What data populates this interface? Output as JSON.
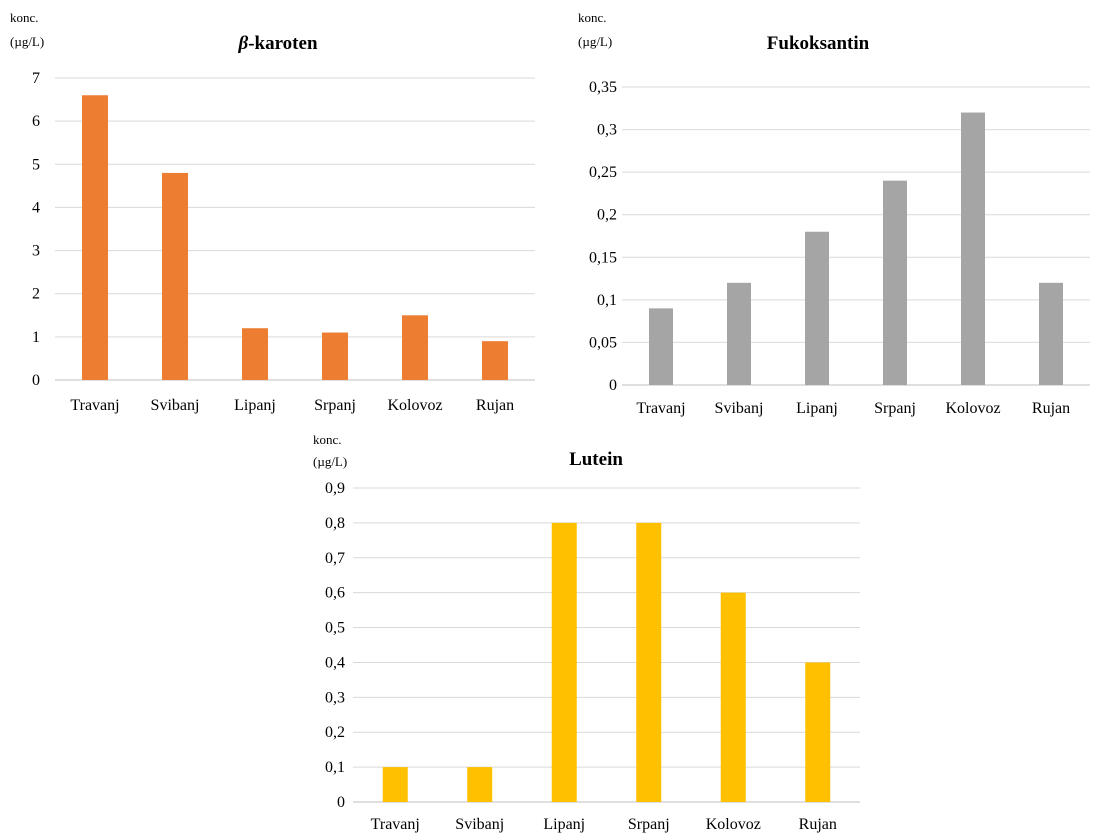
{
  "chart_data": [
    {
      "type": "bar",
      "title_prefix": "β",
      "title_rest": "-karoten",
      "ylabel_line1": "konc.",
      "ylabel_line2": "(µg/L)",
      "categories": [
        "Travanj",
        "Svibanj",
        "Lipanj",
        "Srpanj",
        "Kolovoz",
        "Rujan"
      ],
      "values": [
        6.6,
        4.8,
        1.2,
        1.1,
        1.5,
        0.9
      ],
      "ylim": [
        0,
        7
      ],
      "yticks": [
        "0",
        "1",
        "2",
        "3",
        "4",
        "5",
        "6",
        "7"
      ],
      "color": "#ed7d31",
      "grid": true
    },
    {
      "type": "bar",
      "title": "Fukoksantin",
      "ylabel_line1": "konc.",
      "ylabel_line2": "(µg/L)",
      "categories": [
        "Travanj",
        "Svibanj",
        "Lipanj",
        "Srpanj",
        "Kolovoz",
        "Rujan"
      ],
      "values": [
        0.09,
        0.12,
        0.18,
        0.24,
        0.32,
        0.12
      ],
      "ylim": [
        0,
        0.35
      ],
      "yticks": [
        "0",
        "0,05",
        "0,1",
        "0,15",
        "0,2",
        "0,25",
        "0,3",
        "0,35"
      ],
      "color": "#a5a5a5",
      "grid": true
    },
    {
      "type": "bar",
      "title": "Lutein",
      "ylabel_line1": "konc.",
      "ylabel_line2": "(µg/L)",
      "categories": [
        "Travanj",
        "Svibanj",
        "Lipanj",
        "Srpanj",
        "Kolovoz",
        "Rujan"
      ],
      "values": [
        0.1,
        0.1,
        0.8,
        0.8,
        0.6,
        0.4
      ],
      "ylim": [
        0,
        0.9
      ],
      "yticks": [
        "0",
        "0,1",
        "0,2",
        "0,3",
        "0,4",
        "0,5",
        "0,6",
        "0,7",
        "0,8",
        "0,9"
      ],
      "color": "#ffc000",
      "grid": true
    }
  ]
}
